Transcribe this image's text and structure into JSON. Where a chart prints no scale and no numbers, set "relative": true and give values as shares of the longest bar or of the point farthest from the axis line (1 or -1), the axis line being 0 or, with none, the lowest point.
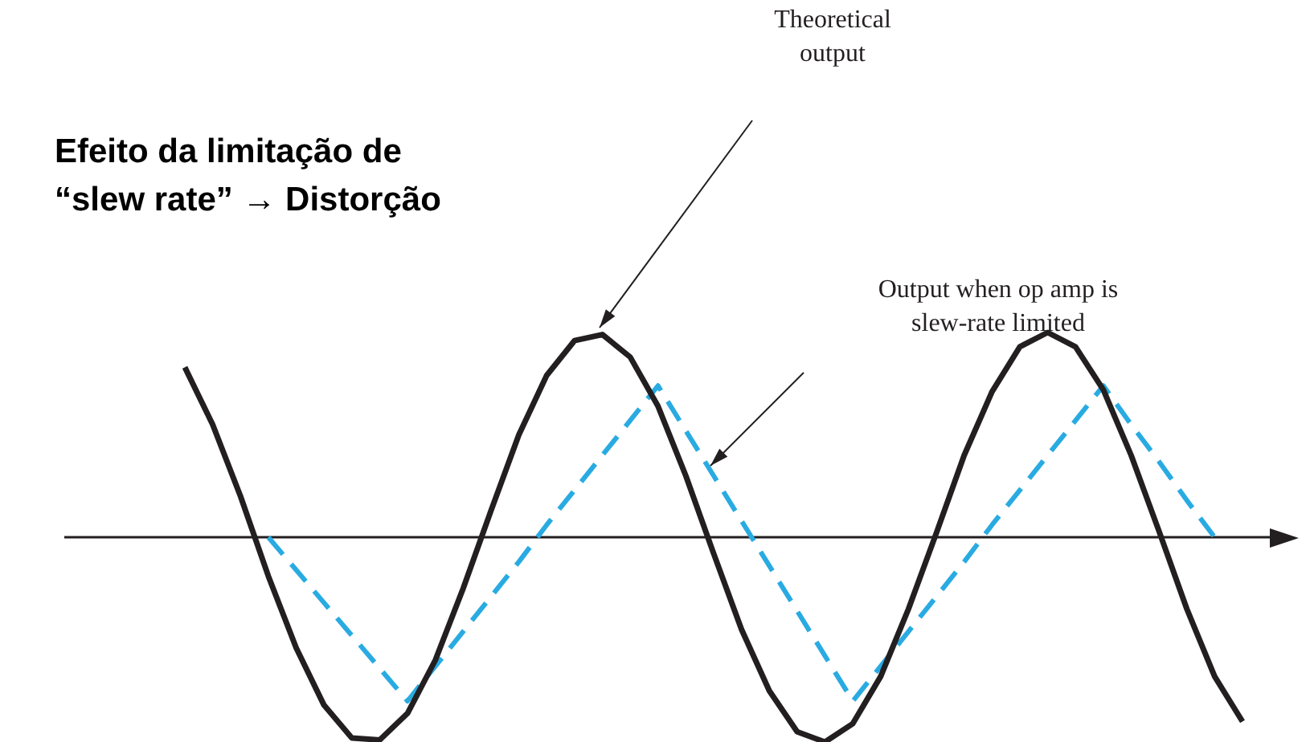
{
  "chart_data": {
    "type": "line",
    "title": "Efeito da limitação de “slew rate” → Distorção",
    "relative": true,
    "legend": false,
    "marker": "none",
    "annotations": [
      "Theoretical output",
      "Output when op amp is slew-rate limited"
    ],
    "categories": [
      null,
      null,
      null,
      null,
      null,
      null,
      null,
      null,
      null,
      null,
      null,
      null,
      null,
      null,
      null,
      null,
      null,
      null,
      null,
      null,
      null,
      null,
      null,
      null,
      null,
      null,
      null,
      null,
      null,
      null,
      null,
      null,
      null,
      null,
      null,
      null,
      null,
      null,
      null
    ],
    "series": [
      {
        "color": "#231f20",
        "line_style": "solid",
        "values": [
          0.83,
          0.55,
          0.2,
          -0.19,
          -0.54,
          -0.82,
          -0.98,
          -0.99,
          -0.86,
          -0.6,
          -0.25,
          0.13,
          0.5,
          0.79,
          0.96,
          0.99,
          0.88,
          0.64,
          0.3,
          -0.08,
          -0.45,
          -0.75,
          -0.95,
          -1,
          -0.91,
          -0.68,
          -0.35,
          0.02,
          0.4,
          0.71,
          0.93,
          1,
          0.93,
          0.72,
          0.4,
          0.03,
          -0.35,
          -0.68,
          -0.9
        ]
      },
      {
        "color": "#29abe2",
        "line_style": "dashed",
        "values": [
          null,
          null,
          null,
          0,
          -0.16,
          -0.32,
          -0.48,
          -0.64,
          -0.8,
          -0.63,
          -0.46,
          -0.29,
          -0.12,
          0.06,
          0.23,
          0.4,
          0.57,
          0.74,
          0.52,
          0.3,
          0.08,
          -0.14,
          -0.36,
          -0.58,
          -0.8,
          -0.63,
          -0.46,
          -0.29,
          -0.12,
          0.06,
          0.23,
          0.4,
          0.57,
          0.74,
          0.55,
          0.37,
          0.18,
          0,
          null
        ]
      }
    ]
  }
}
